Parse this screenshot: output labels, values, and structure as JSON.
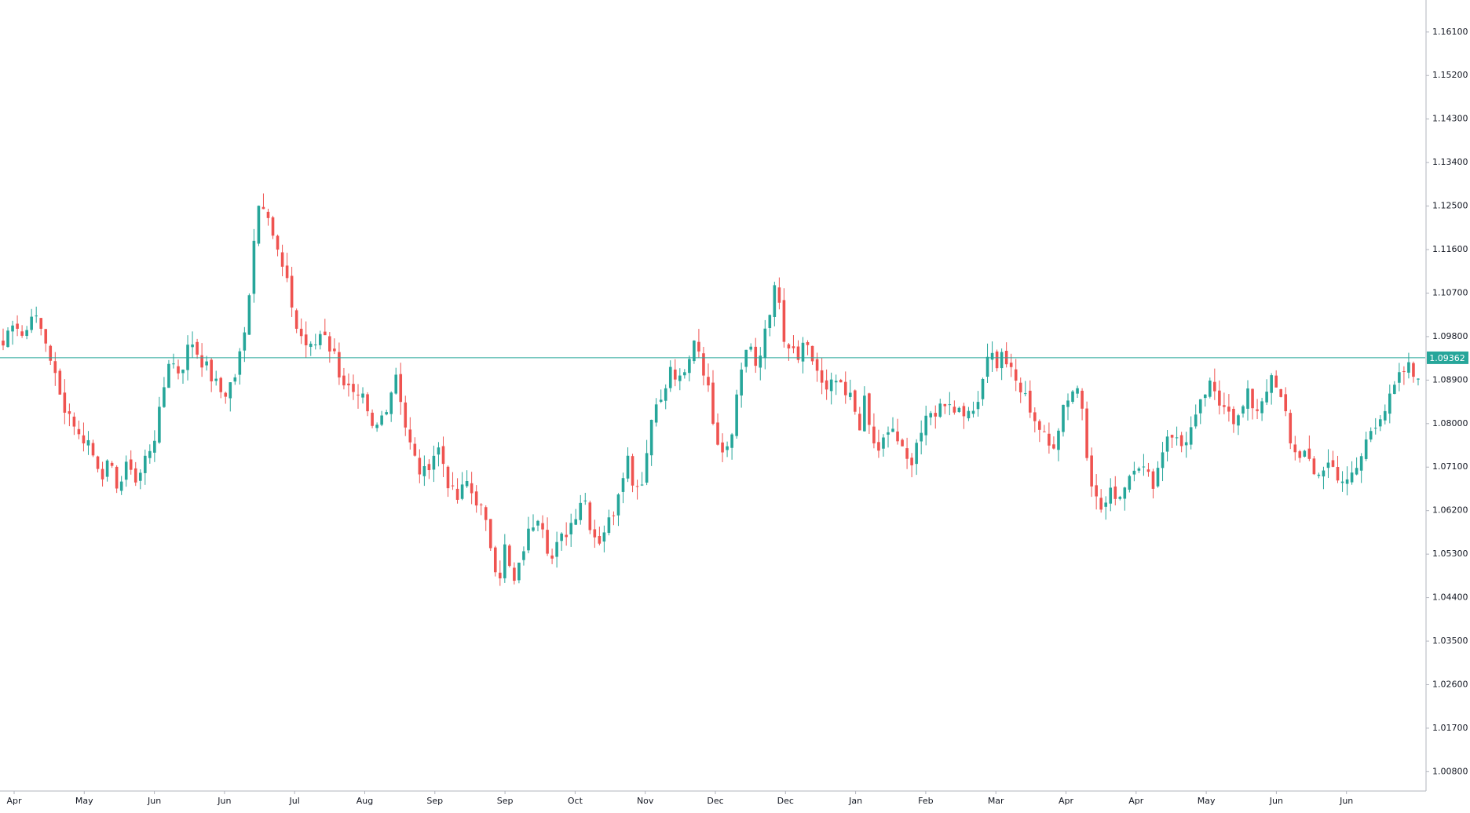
{
  "chart_data": {
    "type": "candlestick",
    "y_range": [
      1.004,
      1.166
    ],
    "y_ticks": [
      "1.16100",
      "1.15200",
      "1.14300",
      "1.13400",
      "1.12500",
      "1.11600",
      "1.10700",
      "1.09800",
      "1.08900",
      "1.08000",
      "1.07100",
      "1.06200",
      "1.05300",
      "1.04400",
      "1.03500",
      "1.02600",
      "1.01700",
      "1.00800"
    ],
    "x_tick_labels": [
      "Apr",
      "May",
      "Jun",
      "Jun",
      "Jul",
      "Aug",
      "Sep",
      "Sep",
      "Oct",
      "Nov",
      "Dec",
      "Dec",
      "Jan",
      "Feb",
      "Mar",
      "Apr",
      "Apr",
      "May",
      "Jun",
      "Jun"
    ],
    "current_price": {
      "value": 1.09362,
      "label": "1.09362"
    },
    "colors": {
      "up": "#26a69a",
      "down": "#ef5350",
      "price_line": "#26a69a",
      "axis_text": "#131722",
      "axis_line": "#b2b5be"
    },
    "close_path": [
      1.0962,
      1.0995,
      1.1025,
      1.099,
      1.0975,
      1.104,
      1.101,
      1.099,
      1.096,
      1.092,
      1.086,
      1.084,
      1.082,
      1.08,
      1.076,
      1.078,
      1.074,
      1.072,
      1.07,
      1.071,
      1.069,
      1.067,
      1.07,
      1.072,
      1.068,
      1.07,
      1.074,
      1.076,
      1.08,
      1.087,
      1.0935,
      1.092,
      1.0905,
      1.094,
      1.0975,
      1.095,
      1.093,
      1.091,
      1.089,
      1.087,
      1.086,
      1.088,
      1.09,
      1.095,
      1.1,
      1.115,
      1.125,
      1.126,
      1.124,
      1.118,
      1.114,
      1.11,
      1.106,
      1.1,
      1.098,
      1.096,
      1.095,
      1.098,
      1.1,
      1.096,
      1.094,
      1.09,
      1.088,
      1.086,
      1.084,
      1.085,
      1.081,
      1.078,
      1.08,
      1.083,
      1.086,
      1.091,
      1.085,
      1.078,
      1.074,
      1.071,
      1.069,
      1.072,
      1.074,
      1.075,
      1.07,
      1.066,
      1.064,
      1.066,
      1.068,
      1.065,
      1.064,
      1.06,
      1.056,
      1.051,
      1.049,
      1.056,
      1.046,
      1.048,
      1.054,
      1.057,
      1.06,
      1.062,
      1.058,
      1.051,
      1.054,
      1.056,
      1.058,
      1.06,
      1.063,
      1.066,
      1.06,
      1.057,
      1.056,
      1.059,
      1.06,
      1.065,
      1.07,
      1.073,
      1.068,
      1.067,
      1.07,
      1.079,
      1.086,
      1.084,
      1.088,
      1.092,
      1.088,
      1.089,
      1.092,
      1.098,
      1.095,
      1.09,
      1.084,
      1.078,
      1.075,
      1.076,
      1.08,
      1.088,
      1.094,
      1.098,
      1.09,
      1.094,
      1.101,
      1.105,
      1.109,
      1.098,
      1.094,
      1.095,
      1.093,
      1.096,
      1.094,
      1.092,
      1.088,
      1.086,
      1.088,
      1.089,
      1.085,
      1.086,
      1.083,
      1.08,
      1.085,
      1.077,
      1.074,
      1.076,
      1.077,
      1.079,
      1.076,
      1.073,
      1.071,
      1.076,
      1.078,
      1.08,
      1.082,
      1.083,
      1.084,
      1.086,
      1.082,
      1.084,
      1.083,
      1.08,
      1.085,
      1.088,
      1.095,
      1.094,
      1.092,
      1.095,
      1.091,
      1.089,
      1.087,
      1.085,
      1.083,
      1.08,
      1.078,
      1.075,
      1.076,
      1.08,
      1.085,
      1.086,
      1.088,
      1.086,
      1.075,
      1.068,
      1.063,
      1.062,
      1.065,
      1.066,
      1.065,
      1.068,
      1.07,
      1.073,
      1.071,
      1.069,
      1.068,
      1.071,
      1.076,
      1.079,
      1.077,
      1.075,
      1.077,
      1.079,
      1.081,
      1.085,
      1.088,
      1.086,
      1.084,
      1.085,
      1.083,
      1.08,
      1.082,
      1.086,
      1.084,
      1.083,
      1.086,
      1.089,
      1.088,
      1.085,
      1.082,
      1.076,
      1.073,
      1.075,
      1.072,
      1.069,
      1.07,
      1.071,
      1.072,
      1.07,
      1.069,
      1.067,
      1.069,
      1.071,
      1.074,
      1.078,
      1.08,
      1.082,
      1.083,
      1.085,
      1.088,
      1.09,
      1.092,
      1.09,
      1.0893
    ]
  }
}
